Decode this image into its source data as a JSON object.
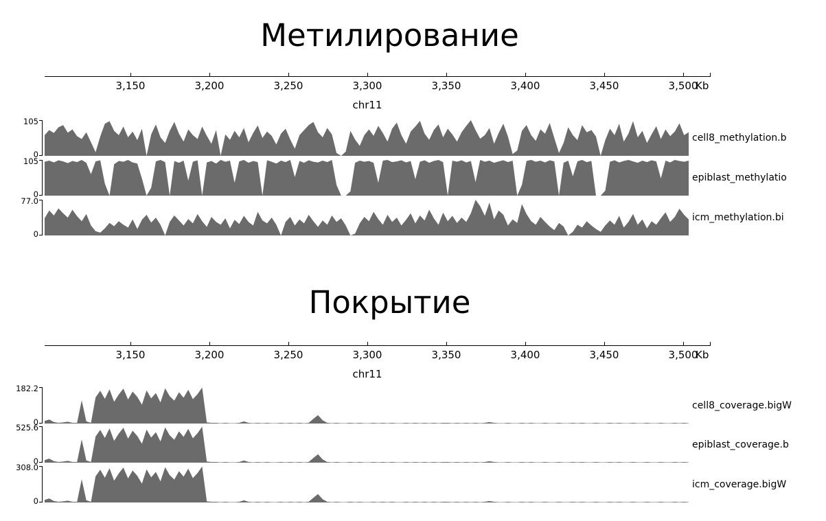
{
  "page": {
    "background": "#ffffff"
  },
  "chart_data": {
    "type": "area",
    "track_color": "#6b6b6b",
    "axis_color": "#000000",
    "figures": [
      {
        "title": "Метилирование",
        "chrom_label": "chr11",
        "x_axis": {
          "tick_labels": [
            "3,150",
            "3,200",
            "3,250",
            "3,300",
            "3,350",
            "3,400",
            "3,450",
            "3,500"
          ],
          "unit_label": "Kb",
          "approx_range_kb": [
            3096,
            3517
          ]
        },
        "tracks": [
          {
            "label": "cell8_methylation.b",
            "ymin": "0",
            "ymax": "105",
            "profile": "cell8_methylation"
          },
          {
            "label": "epiblast_methylatio",
            "ymin": "0",
            "ymax": "105",
            "profile": "epiblast_methylation"
          },
          {
            "label": "icm_methylation.bi",
            "ymin": "0",
            "ymax": "77.0",
            "profile": "icm_methylation"
          }
        ]
      },
      {
        "title": "Покрытие",
        "chrom_label": "chr11",
        "x_axis": {
          "tick_labels": [
            "3,150",
            "3,200",
            "3,250",
            "3,300",
            "3,350",
            "3,400",
            "3,450",
            "3,500"
          ],
          "unit_label": "Kb",
          "approx_range_kb": [
            3096,
            3517
          ]
        },
        "tracks": [
          {
            "label": "cell8_coverage.bigW",
            "ymin": "0",
            "ymax": "182.2",
            "profile": "coverage_shared"
          },
          {
            "label": "epiblast_coverage.b",
            "ymin": "0",
            "ymax": "525.6",
            "profile": "coverage_shared"
          },
          {
            "label": "icm_coverage.bigW",
            "ymin": "0",
            "ymax": "308.0",
            "profile": "coverage_shared"
          }
        ]
      }
    ],
    "profiles_percent_of_ymax": {
      "cell8_methylation": [
        58,
        72,
        64,
        80,
        86,
        65,
        74,
        55,
        47,
        66,
        38,
        10,
        54,
        90,
        97,
        70,
        58,
        82,
        52,
        68,
        44,
        76,
        0,
        60,
        88,
        52,
        36,
        70,
        95,
        62,
        40,
        74,
        58,
        47,
        82,
        56,
        34,
        72,
        0,
        60,
        45,
        70,
        52,
        78,
        38,
        64,
        85,
        50,
        68,
        56,
        32,
        62,
        76,
        46,
        20,
        58,
        72,
        86,
        95,
        66,
        52,
        78,
        60,
        8,
        0,
        12,
        70,
        46,
        28,
        58,
        74,
        56,
        84,
        64,
        40,
        76,
        93,
        58,
        34,
        68,
        82,
        98,
        62,
        45,
        72,
        88,
        52,
        76,
        60,
        40,
        66,
        84,
        100,
        72,
        48,
        58,
        78,
        34,
        64,
        90,
        54,
        5,
        15,
        70,
        86,
        58,
        42,
        74,
        62,
        92,
        50,
        8,
        36,
        80,
        58,
        44,
        86,
        66,
        72,
        54,
        0,
        44,
        76,
        58,
        90,
        40,
        62,
        97,
        52,
        70,
        36,
        60,
        83,
        47,
        74,
        55,
        68,
        91,
        58,
        66
      ],
      "epiblast_methylation": [
        95,
        98,
        93,
        99,
        96,
        91,
        97,
        94,
        100,
        92,
        60,
        96,
        99,
        34,
        0,
        88,
        97,
        95,
        100,
        93,
        90,
        48,
        0,
        22,
        96,
        100,
        94,
        0,
        97,
        92,
        98,
        42,
        95,
        99,
        0,
        93,
        97,
        90,
        100,
        95,
        98,
        36,
        96,
        100,
        92,
        97,
        94,
        0,
        99,
        95,
        90,
        98,
        94,
        100,
        52,
        97,
        92,
        99,
        95,
        93,
        98,
        94,
        100,
        30,
        0,
        0,
        12,
        92,
        98,
        95,
        97,
        92,
        36,
        98,
        100,
        94,
        96,
        99,
        93,
        97,
        46,
        95,
        99,
        92,
        97,
        100,
        94,
        0,
        98,
        95,
        99,
        93,
        97,
        38,
        100,
        95,
        98,
        92,
        96,
        99,
        94,
        98,
        0,
        30,
        97,
        100,
        95,
        98,
        93,
        99,
        96,
        0,
        92,
        98,
        54,
        96,
        100,
        94,
        97,
        0,
        0,
        14,
        95,
        99,
        93,
        97,
        100,
        96,
        92,
        98,
        94,
        99,
        96,
        48,
        98,
        93,
        100,
        97,
        95,
        98
      ],
      "icm_methylation": [
        48,
        70,
        56,
        76,
        62,
        50,
        72,
        54,
        40,
        60,
        28,
        12,
        8,
        20,
        35,
        26,
        40,
        30,
        22,
        45,
        18,
        44,
        58,
        36,
        50,
        30,
        0,
        38,
        56,
        42,
        28,
        46,
        34,
        60,
        40,
        24,
        52,
        38,
        30,
        48,
        20,
        44,
        32,
        55,
        38,
        28,
        66,
        42,
        34,
        50,
        30,
        0,
        38,
        52,
        28,
        45,
        34,
        58,
        40,
        24,
        42,
        30,
        56,
        38,
        48,
        28,
        0,
        5,
        34,
        52,
        40,
        66,
        46,
        30,
        58,
        38,
        50,
        28,
        44,
        62,
        34,
        56,
        42,
        72,
        48,
        30,
        64,
        40,
        55,
        35,
        50,
        38,
        62,
        100,
        82,
        55,
        92,
        45,
        70,
        58,
        28,
        45,
        35,
        88,
        60,
        40,
        30,
        52,
        38,
        25,
        15,
        35,
        25,
        0,
        10,
        30,
        22,
        40,
        28,
        18,
        10,
        28,
        42,
        30,
        55,
        22,
        38,
        60,
        30,
        45,
        20,
        40,
        30,
        48,
        65,
        38,
        52,
        75,
        58,
        45
      ],
      "coverage_shared": [
        7,
        11,
        4,
        2,
        3,
        5,
        2,
        2,
        64,
        6,
        2,
        72,
        90,
        68,
        94,
        60,
        80,
        96,
        66,
        88,
        73,
        52,
        91,
        69,
        84,
        58,
        97,
        75,
        63,
        86,
        71,
        93,
        67,
        81,
        99,
        3,
        2,
        2,
        1,
        2,
        1,
        1,
        2,
        6,
        2,
        1,
        2,
        1,
        2,
        1,
        1,
        2,
        1,
        2,
        1,
        2,
        1,
        2,
        13,
        23,
        9,
        2,
        1,
        2,
        1,
        1,
        2,
        1,
        2,
        1,
        1,
        2,
        1,
        2,
        1,
        2,
        1,
        1,
        2,
        1,
        2,
        1,
        2,
        1,
        2,
        1,
        2,
        2,
        1,
        2,
        1,
        2,
        1,
        2,
        1,
        2,
        4,
        2,
        1,
        1,
        2,
        1,
        1,
        2,
        1,
        2,
        1,
        1,
        2,
        1,
        1,
        2,
        1,
        1,
        2,
        1,
        2,
        1,
        1,
        2,
        1,
        1,
        2,
        1,
        2,
        1,
        1,
        2,
        1,
        1,
        2,
        1,
        1,
        2,
        1,
        1,
        2,
        1,
        2,
        1
      ]
    }
  }
}
